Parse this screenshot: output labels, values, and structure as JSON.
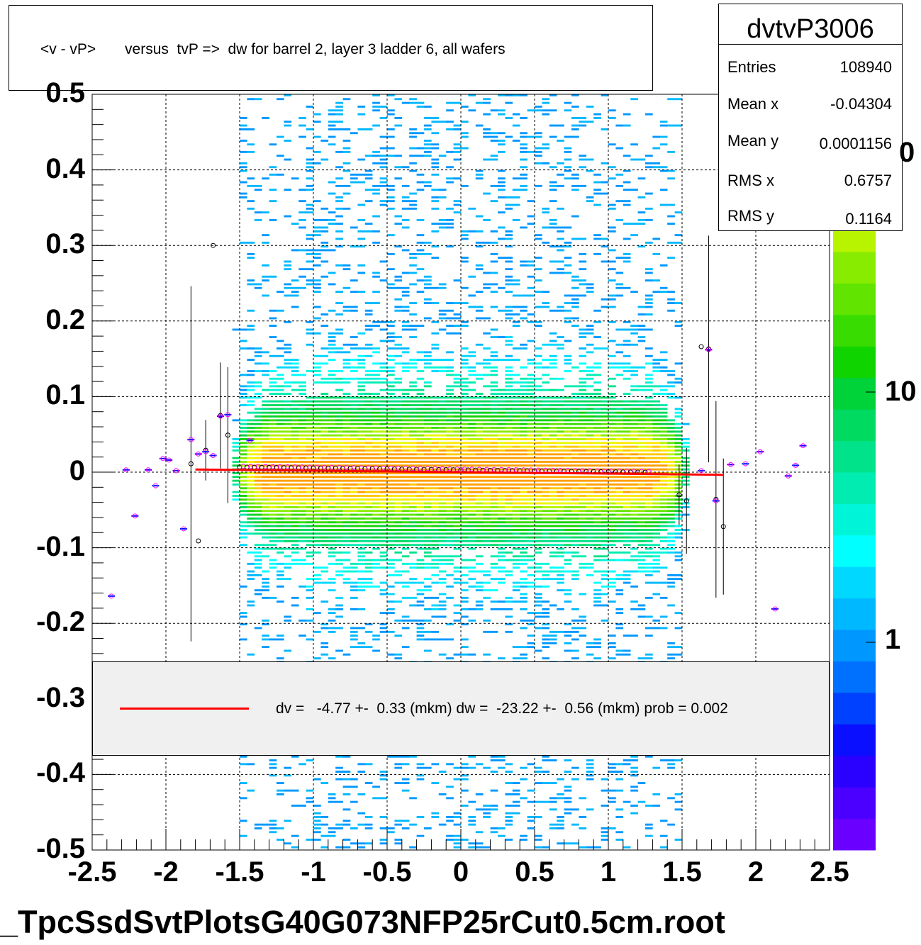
{
  "title": "<v - vP>       versus  tvP =>  dw for barrel 2, layer 3 ladder 6, all wafers",
  "stats": {
    "name": "dvtvP3006",
    "rows": [
      {
        "label": "Entries",
        "value": "108940"
      },
      {
        "label": "Mean x",
        "value": "-0.04304"
      },
      {
        "label": "Mean y",
        "value": "0.0001156"
      },
      {
        "label": "RMS x",
        "value": "0.6757"
      },
      {
        "label": "RMS y",
        "value": "0.1164"
      }
    ]
  },
  "legend": {
    "text": "dv =   -4.77 +-  0.33 (mkm) dw =  -23.22 +-  0.56 (mkm) prob = 0.002",
    "line_color": "#ff0000"
  },
  "file_label": "_TpcSsdSvtPlotsG40G073NFP25rCut0.5cm.root",
  "chart_data": {
    "type": "heatmap",
    "title": "<v - vP>       versus  tvP =>  dw for barrel 2, layer 3 ladder 6, all wafers",
    "xlim": [
      -2.5,
      2.5
    ],
    "ylim": [
      -0.5,
      0.5
    ],
    "x_ticks": [
      "-2.5",
      "-2",
      "-1.5",
      "-1",
      "-0.5",
      "0",
      "0.5",
      "1",
      "1.5",
      "2",
      "2.5"
    ],
    "y_ticks": [
      "0.5",
      "0.4",
      "0.3",
      "0.2",
      "0.1",
      "0",
      "-0.1",
      "-0.2",
      "-0.3",
      "-0.4",
      "-0.5"
    ],
    "z_scale": "log",
    "z_ticks": [
      "1",
      "10",
      "0"
    ],
    "grid": true,
    "palette": [
      "#6a00ff",
      "#4b00ff",
      "#2a00ff",
      "#0a10ff",
      "#0040ff",
      "#0070ff",
      "#0098ff",
      "#00b8ff",
      "#00d8ff",
      "#00ffff",
      "#00f5d8",
      "#00ecb0",
      "#00e38a",
      "#00da60",
      "#00d23a",
      "#10d400",
      "#38dc00",
      "#60e400",
      "#88ec00",
      "#b8f400",
      "#e8fa00",
      "#ffe800",
      "#ffc800",
      "#ffa000"
    ],
    "fit_line": {
      "x": [
        -1.8,
        1.78
      ],
      "y": [
        0.0035,
        -0.0035
      ],
      "color": "#ff0000"
    },
    "profile_points": [
      {
        "x": -2.37,
        "y": -0.164
      },
      {
        "x": -2.27,
        "y": 0.003
      },
      {
        "x": -2.21,
        "y": -0.058
      },
      {
        "x": -2.12,
        "y": 0.003
      },
      {
        "x": -2.07,
        "y": -0.018
      },
      {
        "x": -2.02,
        "y": 0.018
      },
      {
        "x": -1.98,
        "y": 0.016
      },
      {
        "x": -1.93,
        "y": 0.002
      },
      {
        "x": -1.88,
        "y": -0.075
      },
      {
        "x": -1.83,
        "y": 0.043
      },
      {
        "x": -1.78,
        "y": 0.024
      },
      {
        "x": -1.73,
        "y": 0.027
      },
      {
        "x": -1.68,
        "y": 0.022
      },
      {
        "x": -1.63,
        "y": 0.074
      },
      {
        "x": -1.58,
        "y": 0.076
      },
      {
        "x": -1.43,
        "y": 0.042
      },
      {
        "x": 1.63,
        "y": 0.002
      },
      {
        "x": 1.68,
        "y": 0.162
      },
      {
        "x": 1.73,
        "y": -0.038
      },
      {
        "x": 1.83,
        "y": 0.01
      },
      {
        "x": 1.93,
        "y": 0.011
      },
      {
        "x": 2.03,
        "y": 0.027
      },
      {
        "x": 2.13,
        "y": -0.181
      },
      {
        "x": 2.22,
        "y": -0.005
      },
      {
        "x": 2.27,
        "y": 0.009
      },
      {
        "x": 2.32,
        "y": 0.035
      }
    ],
    "black_points": [
      {
        "x": -1.83,
        "y": 0.011,
        "err": 0.235
      },
      {
        "x": -1.78,
        "y": -0.091,
        "err": 0.0
      },
      {
        "x": -1.73,
        "y": 0.029,
        "err": 0.04
      },
      {
        "x": -1.63,
        "y": 0.075,
        "err": 0.07
      },
      {
        "x": -1.58,
        "y": 0.049,
        "err": 0.09
      },
      {
        "x": -1.68,
        "y": 0.3,
        "err": 0.0
      },
      {
        "x": 1.63,
        "y": 0.166,
        "err": 0.0
      },
      {
        "x": 1.68,
        "y": 0.163,
        "err": 0.15
      },
      {
        "x": 1.73,
        "y": -0.036,
        "err": 0.13
      },
      {
        "x": 1.78,
        "y": -0.072,
        "err": 0.09
      },
      {
        "x": 1.53,
        "y": -0.038,
        "err": 0.07
      },
      {
        "x": 1.48,
        "y": -0.03,
        "err": 0.04
      }
    ]
  }
}
